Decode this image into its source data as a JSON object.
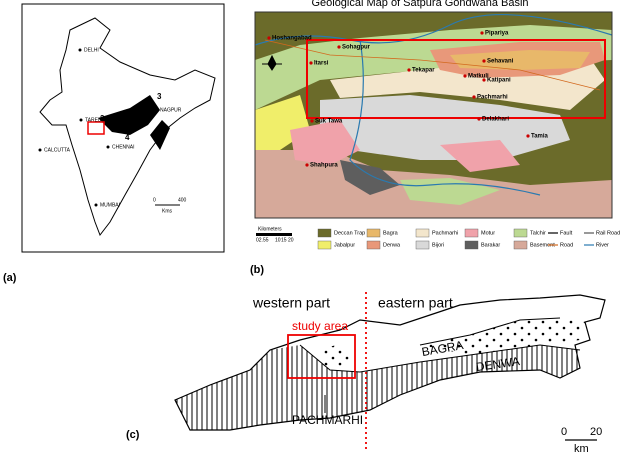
{
  "panel_a": {
    "label": "(a)",
    "places": [
      "DELHI",
      "TAREL",
      "NAGPUR",
      "CALCUTTA",
      "MUMBAI",
      "CHENNAI"
    ],
    "numbers": [
      "1",
      "2",
      "3",
      "4"
    ],
    "scale": [
      "0",
      "400",
      "Kms"
    ]
  },
  "panel_b": {
    "label": "(b)",
    "title": "Geological Map of Satpura Gondwana Basin",
    "places": [
      "Hoshangabad",
      "Sohagpur",
      "Pipariya",
      "Itarsi",
      "Tekapar",
      "Sehavani",
      "Matkuli",
      "Katipani",
      "Pachmarhi",
      "Delakhari",
      "Suk Tawa",
      "Tamia",
      "Shahpura"
    ],
    "scale": {
      "title": "Kilometers",
      "ticks": [
        "02.55",
        "10",
        "15",
        "20"
      ]
    },
    "legend": [
      {
        "name": "Deccan Trap",
        "color": "#6b6b2a"
      },
      {
        "name": "Jabalpur",
        "color": "#f0ee6a"
      },
      {
        "name": "Bagra",
        "color": "#e8b86a"
      },
      {
        "name": "Denwa",
        "color": "#e8987a"
      },
      {
        "name": "Pachmarhi",
        "color": "#f3e6cc"
      },
      {
        "name": "Bijori",
        "color": "#d9d9d9"
      },
      {
        "name": "Motur",
        "color": "#f0a2aa"
      },
      {
        "name": "Barakar",
        "color": "#5e5e5e"
      },
      {
        "name": "Talchir",
        "color": "#bcd992"
      },
      {
        "name": "Basement",
        "color": "#d6a99a"
      }
    ],
    "line_legend": [
      {
        "name": "Fault",
        "color": "#000000"
      },
      {
        "name": "Rail Road",
        "color": "#555555"
      },
      {
        "name": "Road",
        "color": "#d2691e"
      },
      {
        "name": "River",
        "color": "#2a7ab0"
      }
    ]
  },
  "panel_c": {
    "label": "(c)",
    "western": "western part",
    "eastern": "eastern part",
    "study_area": "study area",
    "bagra": "BAGRA",
    "denwa": "DENWA",
    "pachmarhi": "PACHMARHI",
    "scale": [
      "0",
      "20",
      "km"
    ]
  }
}
